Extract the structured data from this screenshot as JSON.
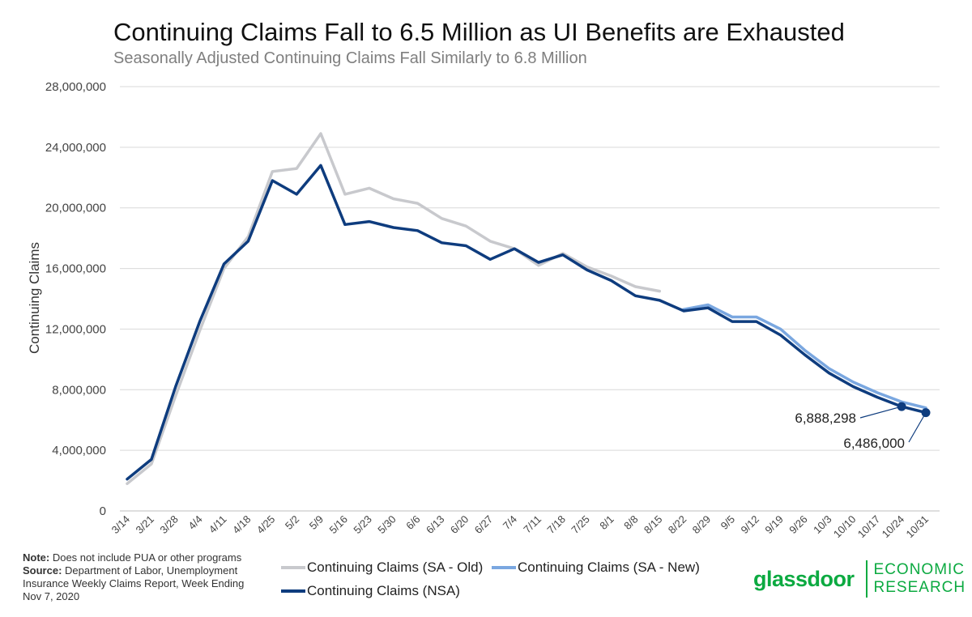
{
  "header": {
    "title": "Continuing Claims Fall to 6.5 Million as UI Benefits are Exhausted",
    "subtitle": "Seasonally Adjusted Continuing Claims Fall Similarly to 6.8 Million"
  },
  "chart_data": {
    "type": "line",
    "title": "Continuing Claims Fall to 6.5 Million as UI Benefits are Exhausted",
    "subtitle": "Seasonally Adjusted Continuing Claims Fall Similarly to 6.8 Million",
    "ylabel": "Continuing Claims",
    "xlabel": "",
    "ylim": [
      0,
      28000000
    ],
    "yticks": [
      0,
      4000000,
      8000000,
      12000000,
      16000000,
      20000000,
      24000000,
      28000000
    ],
    "ytick_labels": [
      "0",
      "4,000,000",
      "8,000,000",
      "12,000,000",
      "16,000,000",
      "20,000,000",
      "24,000,000",
      "28,000,000"
    ],
    "grid": true,
    "legend_position": "bottom",
    "categories": [
      "3/14",
      "3/21",
      "3/28",
      "4/4",
      "4/11",
      "4/18",
      "4/25",
      "5/2",
      "5/9",
      "5/16",
      "5/23",
      "5/30",
      "6/6",
      "6/13",
      "6/20",
      "6/27",
      "7/4",
      "7/11",
      "7/18",
      "7/25",
      "8/1",
      "8/8",
      "8/15",
      "8/22",
      "8/29",
      "9/5",
      "9/12",
      "9/19",
      "9/26",
      "10/3",
      "10/10",
      "10/17",
      "10/24",
      "10/31"
    ],
    "series": [
      {
        "name": "Continuing Claims (SA - Old)",
        "color": "#c8c9cd",
        "values": [
          1800000,
          3100000,
          7600000,
          11900000,
          16000000,
          18100000,
          22400000,
          22600000,
          24900000,
          20900000,
          21300000,
          20600000,
          20300000,
          19300000,
          18800000,
          17800000,
          17300000,
          16200000,
          17000000,
          16100000,
          15500000,
          14800000,
          14500000,
          null,
          null,
          null,
          null,
          null,
          null,
          null,
          null,
          null,
          null,
          null
        ]
      },
      {
        "name": "Continuing Claims (SA - New)",
        "color": "#7aa7e0",
        "values": [
          null,
          null,
          null,
          null,
          null,
          null,
          null,
          null,
          null,
          null,
          null,
          null,
          null,
          null,
          null,
          null,
          null,
          null,
          null,
          null,
          null,
          null,
          null,
          13300000,
          13600000,
          12800000,
          12800000,
          12000000,
          10600000,
          9400000,
          8500000,
          7800000,
          7200000,
          6800000
        ]
      },
      {
        "name": "Continuing Claims (NSA)",
        "color": "#0e3c7e",
        "values": [
          2100000,
          3400000,
          8200000,
          12500000,
          16300000,
          17800000,
          21800000,
          20900000,
          22800000,
          18900000,
          19100000,
          18700000,
          18500000,
          17700000,
          17500000,
          16600000,
          17300000,
          16400000,
          16900000,
          15900000,
          15200000,
          14200000,
          13900000,
          13200000,
          13400000,
          12500000,
          12500000,
          11600000,
          10300000,
          9100000,
          8200000,
          7500000,
          6888298,
          6486000
        ]
      }
    ],
    "annotations": [
      {
        "series": "Continuing Claims (NSA)",
        "category": "10/24",
        "value": 6888298,
        "label": "6,888,298"
      },
      {
        "series": "Continuing Claims (NSA)",
        "category": "10/31",
        "value": 6486000,
        "label": "6,486,000"
      }
    ]
  },
  "legend": {
    "sa_old": "Continuing Claims (SA - Old)",
    "sa_new": "Continuing Claims (SA - New)",
    "nsa": "Continuing Claims (NSA)"
  },
  "note": {
    "note_label": "Note:",
    "note_text": " Does not include PUA or other programs",
    "source_label": "Source:",
    "source_text": " Department of Labor, Unemployment Insurance Weekly Claims Report, Week Ending Nov 7, 2020"
  },
  "brand": {
    "wordmark": "glassdoor",
    "line1": "ECONOMIC",
    "line2": "RESEARCH",
    "color": "#0caa41"
  }
}
